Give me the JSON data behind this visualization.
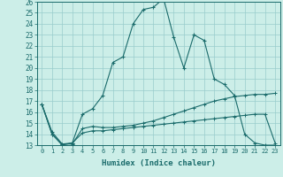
{
  "xlabel": "Humidex (Indice chaleur)",
  "bg_color": "#cceee8",
  "line_color": "#1a6b6b",
  "grid_color": "#99cccc",
  "xlim": [
    -0.5,
    23.5
  ],
  "ylim": [
    13,
    26
  ],
  "xtick_labels": [
    "0",
    "1",
    "2",
    "3",
    "4",
    "5",
    "6",
    "7",
    "8",
    "9",
    "10",
    "11",
    "12",
    "13",
    "14",
    "15",
    "16",
    "17",
    "18",
    "19",
    "20",
    "21",
    "22",
    "23"
  ],
  "ytick_labels": [
    "13",
    "14",
    "15",
    "16",
    "17",
    "18",
    "19",
    "20",
    "21",
    "22",
    "23",
    "24",
    "25",
    "26"
  ],
  "line1_x": [
    0,
    1,
    2,
    3,
    4,
    5,
    6,
    7,
    8,
    9,
    10,
    11,
    12,
    13,
    14,
    15,
    16,
    17,
    18,
    19,
    20,
    21,
    22,
    23
  ],
  "line1_y": [
    16.7,
    14.0,
    13.0,
    13.2,
    15.8,
    16.3,
    17.5,
    20.5,
    21.0,
    24.0,
    25.3,
    25.5,
    26.3,
    22.8,
    20.0,
    23.0,
    22.5,
    19.0,
    18.5,
    17.5,
    14.0,
    13.2,
    13.0,
    13.0
  ],
  "line2_x": [
    0,
    1,
    2,
    3,
    4,
    5,
    6,
    7,
    8,
    9,
    10,
    11,
    12,
    13,
    14,
    15,
    16,
    17,
    18,
    19,
    20,
    21,
    22,
    23
  ],
  "line2_y": [
    16.7,
    14.0,
    13.1,
    13.1,
    14.5,
    14.7,
    14.6,
    14.6,
    14.7,
    14.8,
    15.0,
    15.2,
    15.5,
    15.8,
    16.1,
    16.4,
    16.7,
    17.0,
    17.2,
    17.4,
    17.5,
    17.6,
    17.6,
    17.7
  ],
  "line3_x": [
    0,
    1,
    2,
    3,
    4,
    5,
    6,
    7,
    8,
    9,
    10,
    11,
    12,
    13,
    14,
    15,
    16,
    17,
    18,
    19,
    20,
    21,
    22,
    23
  ],
  "line3_y": [
    16.7,
    14.2,
    13.1,
    13.2,
    14.1,
    14.3,
    14.3,
    14.4,
    14.5,
    14.6,
    14.7,
    14.8,
    14.9,
    15.0,
    15.1,
    15.2,
    15.3,
    15.4,
    15.5,
    15.6,
    15.7,
    15.8,
    15.8,
    13.2
  ]
}
